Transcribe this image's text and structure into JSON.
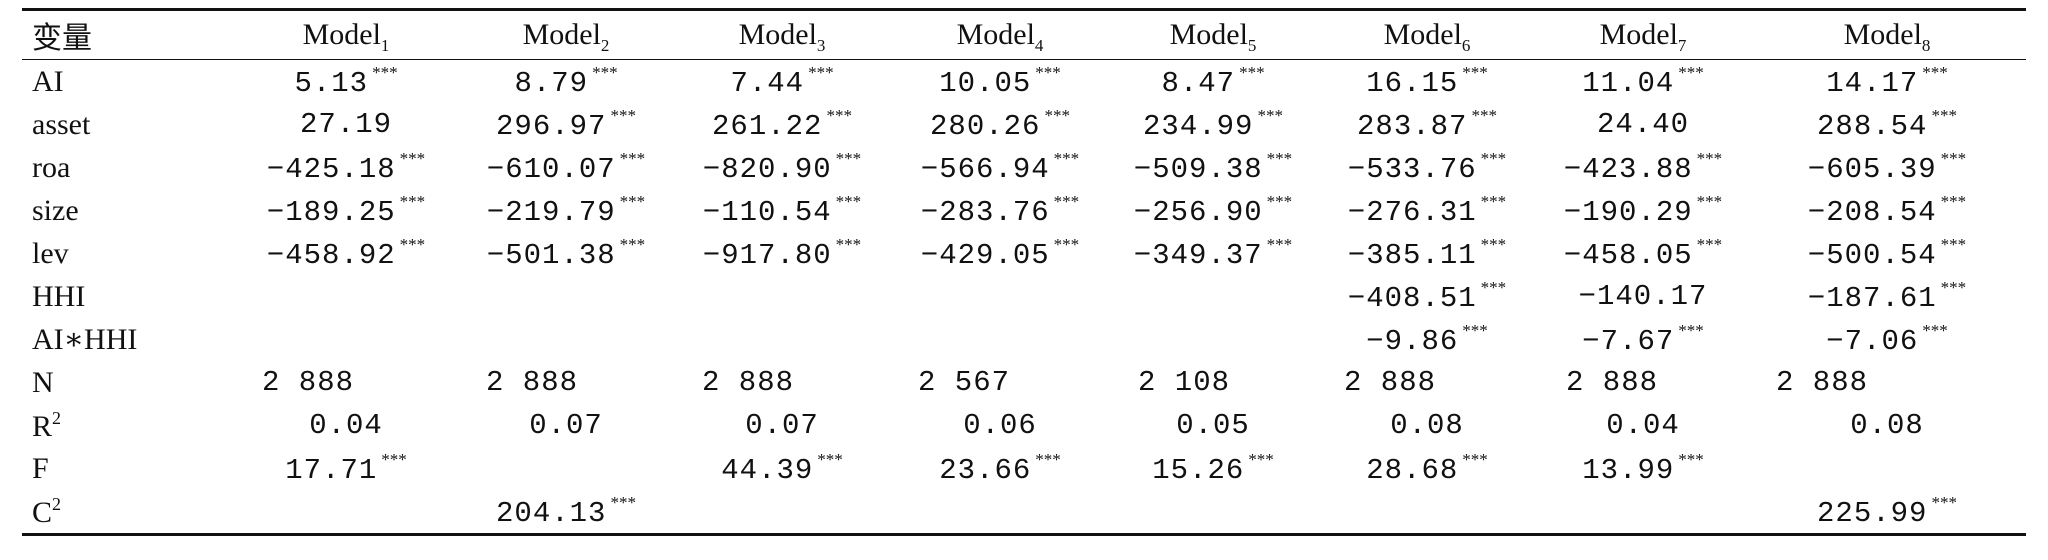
{
  "table": {
    "var_header": "变量",
    "models": [
      {
        "base": "Model",
        "sub": "1"
      },
      {
        "base": "Model",
        "sub": "2"
      },
      {
        "base": "Model",
        "sub": "3"
      },
      {
        "base": "Model",
        "sub": "4"
      },
      {
        "base": "Model",
        "sub": "5"
      },
      {
        "base": "Model",
        "sub": "6"
      },
      {
        "base": "Model",
        "sub": "7"
      },
      {
        "base": "Model",
        "sub": "8"
      }
    ],
    "rows": [
      {
        "label": "AI",
        "label_sup": "",
        "align": "center",
        "cells": [
          {
            "v": "5.13",
            "s": "***"
          },
          {
            "v": "8.79",
            "s": "***"
          },
          {
            "v": "7.44",
            "s": "***"
          },
          {
            "v": "10.05",
            "s": "***"
          },
          {
            "v": "8.47",
            "s": "***"
          },
          {
            "v": "16.15",
            "s": "***"
          },
          {
            "v": "11.04",
            "s": "***"
          },
          {
            "v": "14.17",
            "s": "***"
          }
        ]
      },
      {
        "label": "asset",
        "label_sup": "",
        "align": "center",
        "cells": [
          {
            "v": "27.19",
            "s": ""
          },
          {
            "v": "296.97",
            "s": "***"
          },
          {
            "v": "261.22",
            "s": "***"
          },
          {
            "v": "280.26",
            "s": "***"
          },
          {
            "v": "234.99",
            "s": "***"
          },
          {
            "v": "283.87",
            "s": "***"
          },
          {
            "v": "24.40",
            "s": ""
          },
          {
            "v": "288.54",
            "s": "***"
          }
        ]
      },
      {
        "label": "roa",
        "label_sup": "",
        "align": "center",
        "cells": [
          {
            "v": "−425.18",
            "s": "***"
          },
          {
            "v": "−610.07",
            "s": "***"
          },
          {
            "v": "−820.90",
            "s": "***"
          },
          {
            "v": "−566.94",
            "s": "***"
          },
          {
            "v": "−509.38",
            "s": "***"
          },
          {
            "v": "−533.76",
            "s": "***"
          },
          {
            "v": "−423.88",
            "s": "***"
          },
          {
            "v": "−605.39",
            "s": "***"
          }
        ]
      },
      {
        "label": "size",
        "label_sup": "",
        "align": "center",
        "cells": [
          {
            "v": "−189.25",
            "s": "***"
          },
          {
            "v": "−219.79",
            "s": "***"
          },
          {
            "v": "−110.54",
            "s": "***"
          },
          {
            "v": "−283.76",
            "s": "***"
          },
          {
            "v": "−256.90",
            "s": "***"
          },
          {
            "v": "−276.31",
            "s": "***"
          },
          {
            "v": "−190.29",
            "s": "***"
          },
          {
            "v": "−208.54",
            "s": "***"
          }
        ]
      },
      {
        "label": "lev",
        "label_sup": "",
        "align": "center",
        "cells": [
          {
            "v": "−458.92",
            "s": "***"
          },
          {
            "v": "−501.38",
            "s": "***"
          },
          {
            "v": "−917.80",
            "s": "***"
          },
          {
            "v": "−429.05",
            "s": "***"
          },
          {
            "v": "−349.37",
            "s": "***"
          },
          {
            "v": "−385.11",
            "s": "***"
          },
          {
            "v": "−458.05",
            "s": "***"
          },
          {
            "v": "−500.54",
            "s": "***"
          }
        ]
      },
      {
        "label": "HHI",
        "label_sup": "",
        "align": "center",
        "cells": [
          {
            "v": "",
            "s": ""
          },
          {
            "v": "",
            "s": ""
          },
          {
            "v": "",
            "s": ""
          },
          {
            "v": "",
            "s": ""
          },
          {
            "v": "",
            "s": ""
          },
          {
            "v": "−408.51",
            "s": "***"
          },
          {
            "v": "−140.17",
            "s": ""
          },
          {
            "v": "−187.61",
            "s": "***"
          }
        ]
      },
      {
        "label": "AI∗HHI",
        "label_sup": "",
        "align": "center",
        "cells": [
          {
            "v": "",
            "s": ""
          },
          {
            "v": "",
            "s": ""
          },
          {
            "v": "",
            "s": ""
          },
          {
            "v": "",
            "s": ""
          },
          {
            "v": "",
            "s": ""
          },
          {
            "v": "−9.86",
            "s": "***"
          },
          {
            "v": "−7.67",
            "s": "***"
          },
          {
            "v": "−7.06",
            "s": "***"
          }
        ]
      },
      {
        "label": "N",
        "label_sup": "",
        "align": "left",
        "cells": [
          {
            "v": "2 888",
            "s": ""
          },
          {
            "v": "2 888",
            "s": ""
          },
          {
            "v": "2 888",
            "s": ""
          },
          {
            "v": "2 567",
            "s": ""
          },
          {
            "v": "2 108",
            "s": ""
          },
          {
            "v": "2 888",
            "s": ""
          },
          {
            "v": "2 888",
            "s": ""
          },
          {
            "v": "2 888",
            "s": ""
          }
        ]
      },
      {
        "label": "R",
        "label_sup": "2",
        "align": "center",
        "cells": [
          {
            "v": "0.04",
            "s": ""
          },
          {
            "v": "0.07",
            "s": ""
          },
          {
            "v": "0.07",
            "s": ""
          },
          {
            "v": "0.06",
            "s": ""
          },
          {
            "v": "0.05",
            "s": ""
          },
          {
            "v": "0.08",
            "s": ""
          },
          {
            "v": "0.04",
            "s": ""
          },
          {
            "v": "0.08",
            "s": ""
          }
        ]
      },
      {
        "label": "F",
        "label_sup": "",
        "align": "center",
        "cells": [
          {
            "v": "17.71",
            "s": "***"
          },
          {
            "v": "",
            "s": ""
          },
          {
            "v": "44.39",
            "s": "***"
          },
          {
            "v": "23.66",
            "s": "***"
          },
          {
            "v": "15.26",
            "s": "***"
          },
          {
            "v": "28.68",
            "s": "***"
          },
          {
            "v": "13.99",
            "s": "***"
          },
          {
            "v": "",
            "s": ""
          }
        ]
      },
      {
        "label": "C",
        "label_sup": "2",
        "align": "center",
        "cells": [
          {
            "v": "",
            "s": ""
          },
          {
            "v": "204.13",
            "s": "***"
          },
          {
            "v": "",
            "s": ""
          },
          {
            "v": "",
            "s": ""
          },
          {
            "v": "",
            "s": ""
          },
          {
            "v": "",
            "s": ""
          },
          {
            "v": "",
            "s": ""
          },
          {
            "v": "225.99",
            "s": "***"
          }
        ]
      }
    ]
  }
}
